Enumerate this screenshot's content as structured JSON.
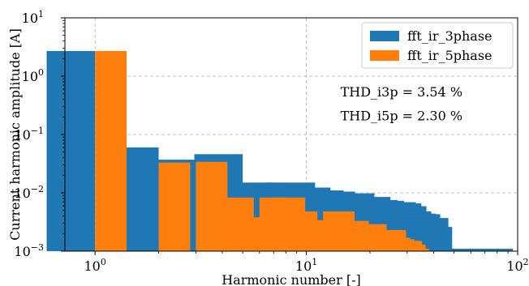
{
  "chart_data": {
    "type": "bar",
    "xscale": "log",
    "yscale": "log",
    "xlim": [
      0.72,
      100
    ],
    "ylim": [
      0.001,
      10
    ],
    "xlabel": "Harmonic number [-]",
    "ylabel": "Current harmonic amplitude [A]",
    "title": "",
    "grid": true,
    "legend_position": "top-right",
    "x_ticks": [
      {
        "value": 1,
        "base": "10",
        "exp": "0"
      },
      {
        "value": 10,
        "base": "10",
        "exp": "1"
      },
      {
        "value": 100,
        "base": "10",
        "exp": "2"
      }
    ],
    "y_ticks": [
      {
        "value": 0.001,
        "base": "10",
        "exp": "−3"
      },
      {
        "value": 0.01,
        "base": "10",
        "exp": "−2"
      },
      {
        "value": 0.1,
        "base": "10",
        "exp": "−1"
      },
      {
        "value": 1,
        "base": "10",
        "exp": "0"
      },
      {
        "value": 10,
        "base": "10",
        "exp": "1"
      }
    ],
    "series": [
      {
        "name": "fft_ir_3phase",
        "color": "#1f77b4",
        "x": [
          1,
          2,
          3,
          4,
          5,
          6,
          7,
          8,
          9,
          10,
          11,
          12,
          13,
          14,
          15,
          16,
          17,
          18,
          19,
          20,
          21,
          22,
          23,
          24,
          25,
          26,
          27,
          28,
          29,
          30,
          31,
          32,
          33,
          34,
          35,
          37,
          39,
          41,
          43,
          47,
          49,
          80,
          87,
          95
        ],
        "y": [
          2.7,
          0.06,
          0.037,
          0.0105,
          0.046,
          0.0022,
          0.015,
          0.0105,
          0.0135,
          0.0038,
          0.015,
          0.0038,
          0.0123,
          0.0032,
          0.011,
          0.0036,
          0.0105,
          0.0033,
          0.0095,
          0.0029,
          0.0098,
          0.0027,
          0.0072,
          0.0025,
          0.0085,
          0.0027,
          0.0075,
          0.0024,
          0.0073,
          0.0023,
          0.0069,
          0.0021,
          0.0069,
          0.0021,
          0.0066,
          0.0059,
          0.0048,
          0.0044,
          0.0043,
          0.0037,
          0.0026,
          0.0011,
          0.0011,
          0.0011
        ]
      },
      {
        "name": "fft_ir_5phase",
        "color": "#ff7f0e",
        "x": [
          1,
          2,
          3,
          4,
          5,
          6,
          7,
          8,
          9,
          10,
          11,
          12,
          13,
          14,
          15,
          16,
          17,
          18,
          19,
          20,
          21,
          22,
          23,
          24,
          25,
          26,
          27
        ],
        "y": [
          2.7,
          0.033,
          0.034,
          0.0083,
          0.0038,
          0.0083,
          0.0083,
          0.0048,
          0.0034,
          0.0014,
          0.0022,
          0.0048,
          0.0031,
          0.0033,
          0.0027,
          0.0025,
          0.0029,
          0.0021,
          0.0022,
          0.0018,
          0.0023,
          0.0017,
          0.0016,
          0.0015,
          0.0015,
          0.0013,
          0.0011
        ]
      }
    ],
    "annotations": [
      {
        "text": "THD_i3p = 3.54 %",
        "x": 14.5,
        "y": 0.45
      },
      {
        "text": "THD_i5p = 2.30 %",
        "x": 14.5,
        "y": 0.175
      }
    ]
  }
}
